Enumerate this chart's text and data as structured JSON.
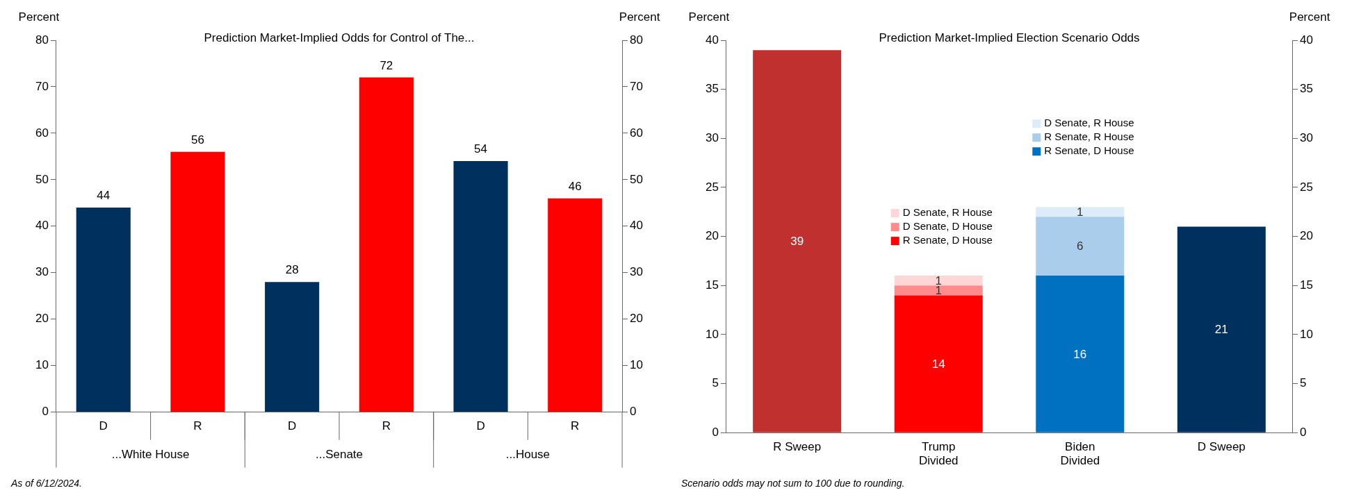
{
  "chart_data": [
    {
      "type": "bar",
      "title": "Prediction Market-Implied Odds for Control of The...",
      "ylabel": "Percent",
      "y2label": "Percent",
      "categories": [
        "D",
        "R",
        "D",
        "R",
        "D",
        "R"
      ],
      "values": [
        44,
        56,
        28,
        72,
        54,
        46
      ],
      "colors": [
        "#00305e",
        "#ff0000",
        "#00305e",
        "#ff0000",
        "#00305e",
        "#ff0000"
      ],
      "ylim": [
        0,
        80
      ],
      "yticks": [
        0,
        10,
        20,
        30,
        40,
        50,
        60,
        70,
        80
      ],
      "y2lim": [
        0,
        80
      ],
      "y2ticks": [
        0,
        10,
        20,
        30,
        40,
        50,
        60,
        70,
        80
      ],
      "data_labels": true,
      "annotations": [
        "...White House",
        "...Senate",
        "...House",
        "As of 6/12/2024."
      ]
    },
    {
      "type": "bar",
      "title": "Prediction Market-Implied Election Scenario Odds",
      "ylabel": "Percent",
      "y2label": "Percent",
      "categories": [
        "R Sweep",
        "Trump Divided",
        "Biden Divided",
        "D Sweep"
      ],
      "stacked": true,
      "legend": "top right",
      "data_labels": true,
      "ylim": [
        0,
        40
      ],
      "yticks": [
        0,
        5,
        10,
        15,
        20,
        25,
        30,
        35,
        40
      ],
      "y2lim": [
        0,
        40
      ],
      "y2ticks": [
        0,
        5,
        10,
        15,
        20,
        25,
        30,
        35,
        40
      ],
      "series": [
        {
          "color": "#c0302f",
          "values": [
            39,
            null,
            null,
            null
          ]
        },
        {
          "name": "R Senate, D House",
          "color": "#ff0000",
          "values": [
            null,
            14,
            null,
            null
          ]
        },
        {
          "name": "D Senate, D House",
          "color": "#ff8c8c",
          "values": [
            null,
            1,
            null,
            null
          ]
        },
        {
          "name": "D Senate, R House",
          "color": "#ffd6d6",
          "values": [
            null,
            1,
            null,
            null
          ]
        },
        {
          "name": "R Senate, D House",
          "color": "#0070c0",
          "values": [
            null,
            null,
            16,
            null
          ]
        },
        {
          "name": "R Senate, R House",
          "color": "#a9cdea",
          "values": [
            null,
            null,
            6,
            null
          ]
        },
        {
          "name": "D Senate, R House",
          "color": "#dcecf8",
          "values": [
            null,
            null,
            1,
            null
          ]
        },
        {
          "color": "#00305e",
          "values": [
            null,
            null,
            null,
            21
          ]
        }
      ],
      "annotations": [
        "Scenario odds may not sum to 100 due to rounding."
      ]
    }
  ]
}
